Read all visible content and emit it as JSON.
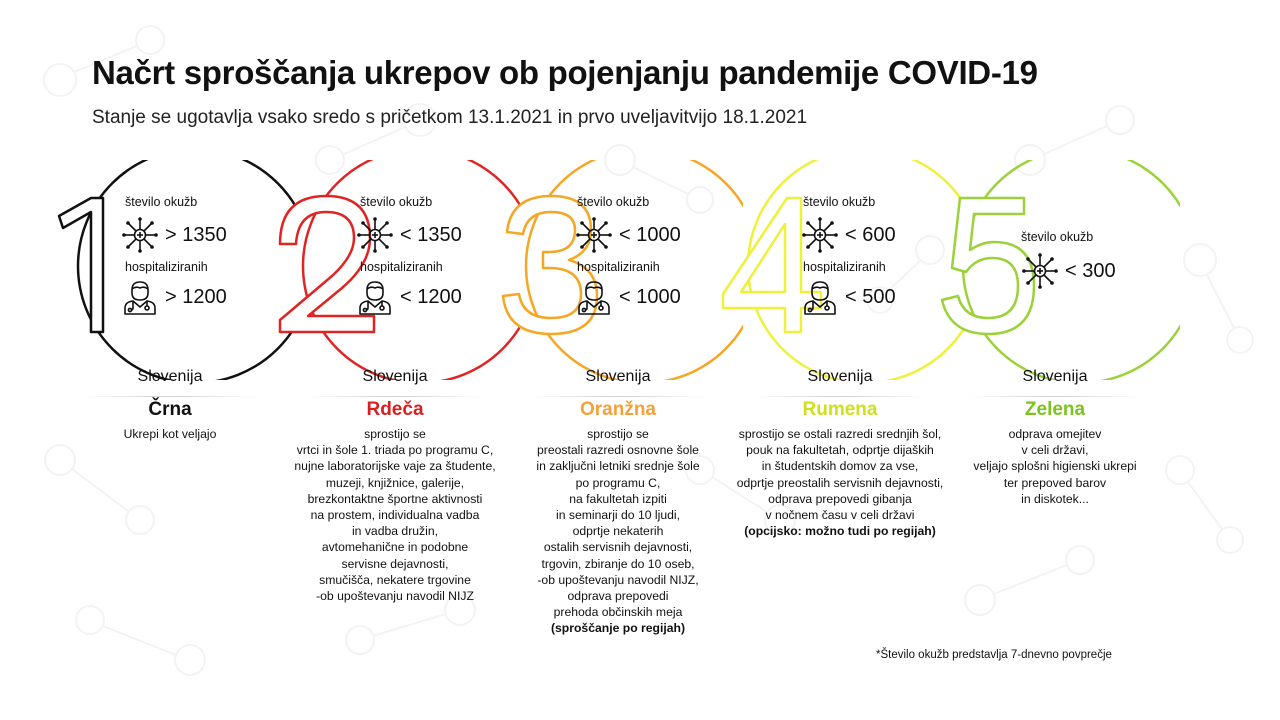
{
  "title": "Načrt sproščanja ukrepov ob pojenjanju pandemije COVID-19",
  "subtitle": "Stanje se ugotavlja vsako sredo s pričetkom 13.1.2021 in prvo uveljavitvijo 18.1.2021",
  "labels": {
    "infections": "število okužb",
    "hospitalized": "hospitalizirani h"
  },
  "stages": [
    {
      "number": "1",
      "color": "#111111",
      "infections_label": "število okužb",
      "infections": "> 1350",
      "hospitalized_label": "hospitaliziranih",
      "hospitalized": "> 1200",
      "region": "Slovenija",
      "phase": "Črna",
      "phase_color": "#111111",
      "lines": [
        "Ukrepi kot veljajo"
      ],
      "note": ""
    },
    {
      "number": "2",
      "color": "#e02424",
      "infections_label": "število okužb",
      "infections": "< 1350",
      "hospitalized_label": "hospitaliziranih",
      "hospitalized": "< 1200",
      "region": "Slovenija",
      "phase": "Rdeča",
      "phase_color": "#d81f1f",
      "lines": [
        "sprostijo se",
        "vrtci in šole 1. triada po programu C,",
        "nujne laboratorijske vaje za študente,",
        "muzeji, knjižnice, galerije,",
        "brezkontaktne športne aktivnosti",
        "na prostem, individualna vadba",
        "in vadba družin,",
        "avtomehanične in podobne",
        "servisne dejavnosti,",
        "smučišča, nekatere trgovine",
        "-ob upoštevanju navodil NIJZ"
      ],
      "note": ""
    },
    {
      "number": "3",
      "color": "#f5a623",
      "infections_label": "število okužb",
      "infections": "< 1000",
      "hospitalized_label": "hospitaliziranih",
      "hospitalized": "< 1000",
      "region": "Slovenija",
      "phase": "Oranžna",
      "phase_color": "#f2a23a",
      "lines": [
        "sprostijo se",
        "preostali razredi osnovne šole",
        "in zaključni letniki srednje šole",
        "po programu C,",
        "na fakultetah izpiti",
        "in seminarji do 10 ljudi,",
        "odprtje nekaterih",
        "ostalih servisnih dejavnosti,",
        "trgovin, zbiranje do 10 oseb,",
        "-ob upoštevanju navodil NIJZ,",
        "odprava prepovedi",
        "prehoda občinskih meja"
      ],
      "note": "(sproščanje po regijah)"
    },
    {
      "number": "4",
      "color": "#eef03a",
      "infections_label": "število okužb",
      "infections": "< 600",
      "hospitalized_label": "hospitaliziranih",
      "hospitalized": "< 500",
      "region": "Slovenija",
      "phase": "Rumena",
      "phase_color": "#cfe01e",
      "lines": [
        "sprostijo se ostali razredi srednjih šol,",
        "pouk na fakultetah, odprtje dijaških",
        "in študentskih domov za vse,",
        "odprtje preostalih servisnih dejavnosti,",
        "odprava prepovedi gibanja",
        "v nočnem času v celi državi"
      ],
      "note": "(opcijsko: možno tudi po regijah)"
    },
    {
      "number": "5",
      "color": "#9bd23a",
      "infections_label": "število okužb",
      "infections": "< 300",
      "hospitalized_label": "",
      "hospitalized": "",
      "region": "Slovenija",
      "phase": "Zelena",
      "phase_color": "#7cc322",
      "lines": [
        "odprava omejitev",
        "v celi državi,",
        "veljajo splošni higienski ukrepi",
        "ter prepoved barov",
        "in diskotek..."
      ],
      "note": ""
    }
  ],
  "footnote": "*Število okužb predstavlja 7-dnevno povprečje"
}
